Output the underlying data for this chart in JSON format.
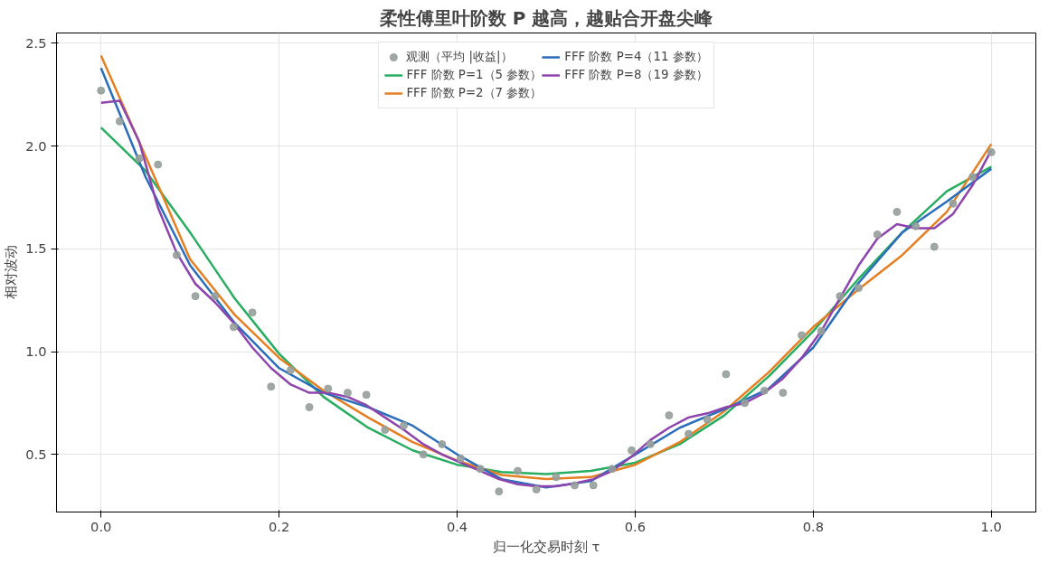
{
  "chart_data": {
    "type": "line",
    "title": "柔性傅里叶阶数 P 越高，越贴合开盘尖峰",
    "xlabel": "归一化交易时刻 τ",
    "ylabel": "相对波动",
    "xlim": [
      -0.05,
      1.05
    ],
    "ylim": [
      0.22,
      2.55
    ],
    "xticks": [
      {
        "value": 0,
        "label": "0.0"
      },
      0.2,
      0.4,
      0.6,
      0.8,
      {
        "value": 1,
        "label": "1.0"
      }
    ],
    "yticks": [
      0.5,
      {
        "value": 1,
        "label": "1.0"
      },
      1.5,
      {
        "value": 2,
        "label": "2.0"
      },
      2.5
    ],
    "grid": true,
    "legend": "top",
    "series": [
      {
        "name": "观测（平均 |收益|）",
        "type": "scatter",
        "marker": "circle",
        "color": "#969e9b",
        "x": [
          0,
          0.021,
          0.043,
          0.064,
          0.085,
          0.106,
          0.128,
          0.149,
          0.17,
          0.191,
          0.213,
          0.234,
          0.255,
          0.277,
          0.298,
          0.319,
          0.34,
          0.362,
          0.383,
          0.404,
          0.426,
          0.447,
          0.468,
          0.489,
          0.511,
          0.532,
          0.553,
          0.574,
          0.596,
          0.617,
          0.638,
          0.66,
          0.681,
          0.702,
          0.723,
          0.745,
          0.766,
          0.787,
          0.809,
          0.83,
          0.851,
          0.872,
          0.894,
          0.915,
          0.936,
          0.957,
          0.979,
          1
        ],
        "values": [
          2.27,
          2.12,
          1.94,
          1.91,
          1.47,
          1.27,
          1.27,
          1.12,
          1.19,
          0.83,
          0.91,
          0.73,
          0.82,
          0.8,
          0.79,
          0.62,
          0.64,
          0.5,
          0.55,
          0.48,
          0.43,
          0.32,
          0.42,
          0.33,
          0.39,
          0.35,
          0.35,
          0.43,
          0.52,
          0.55,
          0.69,
          0.6,
          0.67,
          0.89,
          0.75,
          0.81,
          0.8,
          1.08,
          1.1,
          1.27,
          1.31,
          1.57,
          1.68,
          1.61,
          1.51,
          1.72,
          1.85,
          1.97
        ]
      },
      {
        "name": "FFF 阶数 P=1（5 参数）",
        "color": "#27ae60",
        "x": [
          0,
          0.05,
          0.1,
          0.15,
          0.2,
          0.25,
          0.3,
          0.35,
          0.4,
          0.45,
          0.5,
          0.55,
          0.6,
          0.65,
          0.7,
          0.75,
          0.8,
          0.85,
          0.9,
          0.95,
          1
        ],
        "values": [
          2.09,
          1.88,
          1.58,
          1.26,
          0.99,
          0.78,
          0.63,
          0.52,
          0.45,
          0.415,
          0.405,
          0.42,
          0.46,
          0.55,
          0.69,
          0.88,
          1.1,
          1.35,
          1.58,
          1.78,
          1.9
        ]
      },
      {
        "name": "FFF 阶数 P=2（7 参数）",
        "color": "#e67e22",
        "x": [
          0,
          0.05,
          0.1,
          0.15,
          0.2,
          0.25,
          0.3,
          0.35,
          0.4,
          0.45,
          0.5,
          0.55,
          0.6,
          0.65,
          0.7,
          0.75,
          0.8,
          0.85,
          0.9,
          0.95,
          1
        ],
        "values": [
          2.44,
          1.95,
          1.45,
          1.18,
          0.97,
          0.81,
          0.68,
          0.56,
          0.47,
          0.4,
          0.38,
          0.39,
          0.45,
          0.56,
          0.71,
          0.9,
          1.12,
          1.3,
          1.47,
          1.68,
          2.01
        ]
      },
      {
        "name": "FFF 阶数 P=4（11 参数）",
        "color": "#2a6ebb",
        "x": [
          0,
          0.05,
          0.1,
          0.15,
          0.2,
          0.25,
          0.3,
          0.35,
          0.4,
          0.45,
          0.5,
          0.55,
          0.6,
          0.65,
          0.7,
          0.75,
          0.8,
          0.85,
          0.9,
          0.95,
          1
        ],
        "values": [
          2.38,
          1.85,
          1.42,
          1.14,
          0.92,
          0.8,
          0.73,
          0.64,
          0.5,
          0.38,
          0.34,
          0.37,
          0.5,
          0.63,
          0.72,
          0.82,
          1.02,
          1.33,
          1.58,
          1.73,
          1.89
        ]
      },
      {
        "name": "FFF 阶数 P=8（19 参数）",
        "color": "#8e44ad",
        "x": [
          0,
          0.021,
          0.043,
          0.064,
          0.085,
          0.106,
          0.128,
          0.149,
          0.17,
          0.191,
          0.213,
          0.234,
          0.255,
          0.277,
          0.298,
          0.319,
          0.34,
          0.362,
          0.383,
          0.404,
          0.426,
          0.447,
          0.468,
          0.489,
          0.511,
          0.532,
          0.553,
          0.574,
          0.596,
          0.617,
          0.638,
          0.66,
          0.681,
          0.702,
          0.723,
          0.745,
          0.766,
          0.787,
          0.809,
          0.83,
          0.851,
          0.872,
          0.894,
          0.915,
          0.936,
          0.957,
          0.979,
          1
        ],
        "values": [
          2.21,
          2.22,
          2.02,
          1.7,
          1.48,
          1.33,
          1.24,
          1.14,
          1.02,
          0.92,
          0.84,
          0.8,
          0.8,
          0.78,
          0.74,
          0.68,
          0.62,
          0.55,
          0.5,
          0.46,
          0.42,
          0.38,
          0.355,
          0.345,
          0.345,
          0.36,
          0.38,
          0.42,
          0.49,
          0.57,
          0.63,
          0.68,
          0.7,
          0.73,
          0.75,
          0.8,
          0.87,
          0.97,
          1.1,
          1.26,
          1.42,
          1.55,
          1.62,
          1.6,
          1.6,
          1.67,
          1.81,
          1.98
        ]
      }
    ]
  }
}
